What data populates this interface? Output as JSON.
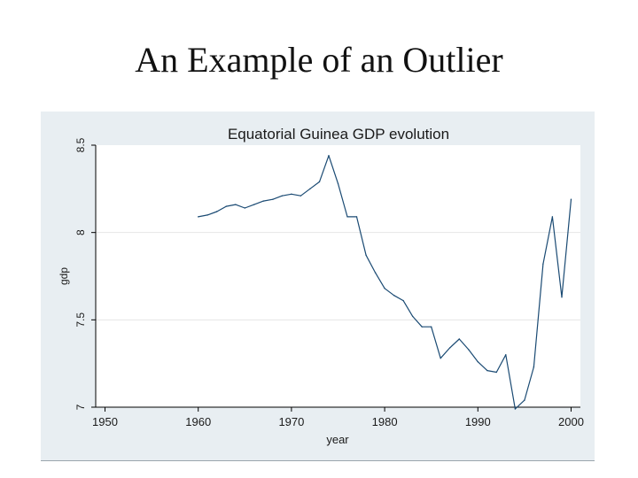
{
  "slide": {
    "title": "An Example of an Outlier"
  },
  "colors": {
    "panel": "#e8eef2",
    "plot": "#ffffff",
    "line": "#1a4a73",
    "grid": "#e6e6e6",
    "axis": "#000000"
  },
  "chart_data": {
    "type": "line",
    "title": "Equatorial Guinea GDP evolution",
    "xlabel": "year",
    "ylabel": "gdp",
    "xlim": [
      1949,
      2001
    ],
    "ylim": [
      7,
      8.5
    ],
    "xticks": [
      1950,
      1960,
      1970,
      1980,
      1990,
      2000
    ],
    "yticks": [
      7,
      7.5,
      8,
      8.5
    ],
    "ytick_labels": [
      "7",
      "7.5",
      "8",
      "8.5"
    ],
    "grid": true,
    "legend": "none",
    "series": [
      {
        "x": [
          1960,
          1961,
          1962,
          1963,
          1964,
          1965,
          1966,
          1967,
          1968,
          1969,
          1970,
          1971,
          1972,
          1973,
          1974,
          1975,
          1976,
          1977,
          1978,
          1979,
          1980,
          1981,
          1982,
          1983,
          1984,
          1985,
          1986,
          1987,
          1988,
          1989,
          1990,
          1991,
          1992,
          1993,
          1994,
          1995,
          1996,
          1997,
          1998,
          1999,
          2000
        ],
        "y": [
          8.09,
          8.1,
          8.12,
          8.15,
          8.16,
          8.14,
          8.16,
          8.18,
          8.19,
          8.21,
          8.22,
          8.21,
          8.25,
          8.29,
          8.44,
          8.28,
          8.09,
          8.09,
          7.87,
          7.77,
          7.68,
          7.64,
          7.61,
          7.52,
          7.46,
          7.46,
          7.28,
          7.34,
          7.39,
          7.33,
          7.26,
          7.21,
          7.2,
          7.3,
          6.99,
          7.04,
          7.23,
          7.82,
          8.09,
          7.63,
          8.19
        ]
      }
    ]
  }
}
